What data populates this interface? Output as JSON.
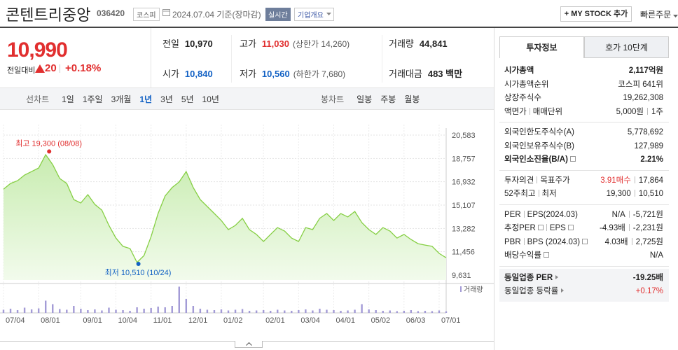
{
  "header": {
    "name": "콘텐트리중앙",
    "code": "036420",
    "market": "코스피",
    "date": "2024.07.04 기준(장마감)",
    "realtime": "실시간",
    "company": "기업개요",
    "mystock": "+ MY STOCK 추가",
    "quick_order": "빠른주문"
  },
  "quote": {
    "price": "10,990",
    "change_label": "전일대비",
    "change": "20",
    "change_pct": "+0.18%"
  },
  "stats": [
    [
      {
        "label": "전일",
        "value": "10,970"
      },
      {
        "label": "고가",
        "value": "11,030",
        "note": "(상한가 14,260)",
        "color": "#e12f2f"
      },
      {
        "label": "거래량",
        "value": "44,841"
      }
    ],
    [
      {
        "label": "시가",
        "value": "10,840",
        "color": "#1261c4"
      },
      {
        "label": "저가",
        "value": "10,560",
        "note": "(하한가 7,680)",
        "color": "#1261c4"
      },
      {
        "label": "거래대금",
        "value": "483 백만"
      }
    ]
  ],
  "periods": {
    "line_label": "선차트",
    "line": [
      "1일",
      "1주일",
      "3개월",
      "1년",
      "3년",
      "5년",
      "10년"
    ],
    "selected": 3,
    "candle_label": "봉차트",
    "candle": [
      "일봉",
      "주봉",
      "월봉"
    ]
  },
  "chart_data": {
    "type": "area",
    "series": [
      {
        "color": "#86cf44",
        "values": [
          16350,
          16800,
          17020,
          17460,
          17730,
          18010,
          19050,
          18280,
          17190,
          16800,
          15540,
          15270,
          15930,
          15160,
          14720,
          13520,
          12530,
          11880,
          11710,
          10620,
          11160,
          12640,
          14450,
          15820,
          16480,
          16920,
          17730,
          16480,
          15540,
          15000,
          14450,
          13900,
          13190,
          13520,
          14070,
          13190,
          12810,
          12260,
          12810,
          13350,
          13080,
          12530,
          12260,
          13350,
          13190,
          14070,
          14450,
          13900,
          14450,
          14180,
          14610,
          13740,
          13190,
          12810,
          13350,
          13080,
          12530,
          12810,
          12420,
          12090,
          11980,
          11880,
          11330,
          10990
        ]
      }
    ],
    "xlim": [
      0,
      63
    ],
    "xticks": [
      {
        "value": 0,
        "label": "07/04"
      },
      {
        "value": 5,
        "label": "08/01"
      },
      {
        "value": 11,
        "label": "09/01"
      },
      {
        "value": 16,
        "label": "10/04"
      },
      {
        "value": 21,
        "label": "11/01"
      },
      {
        "value": 26,
        "label": "12/01"
      },
      {
        "value": 31,
        "label": "01/02"
      },
      {
        "value": 37,
        "label": "02/01"
      },
      {
        "value": 42,
        "label": "03/04"
      },
      {
        "value": 47,
        "label": "04/01"
      },
      {
        "value": 52,
        "label": "05/02"
      },
      {
        "value": 57,
        "label": "06/03"
      },
      {
        "value": 62,
        "label": "07/01"
      }
    ],
    "ylim": [
      9631,
      20583
    ],
    "yticks": [
      {
        "value": 20583,
        "label": "20,583"
      },
      {
        "value": 18757,
        "label": "18,757"
      },
      {
        "value": 16932,
        "label": "16,932"
      },
      {
        "value": 15107,
        "label": "15,107"
      },
      {
        "value": 13282,
        "label": "13,282"
      },
      {
        "value": 11456,
        "label": "11,456"
      },
      {
        "value": 9631,
        "label": "9,631"
      }
    ],
    "grid": true,
    "annotations": [
      {
        "text": "최고 19,300 (08/08)",
        "x": 6.5,
        "value": 19300,
        "color": "#e12f2f",
        "position": "above"
      },
      {
        "text": "최저 10,510 (10/24)",
        "x": 19.2,
        "value": 10510,
        "color": "#1261c4",
        "position": "below"
      }
    ],
    "volume": {
      "label": "거래량",
      "color": "#a39bd6",
      "ylim": [
        0,
        800000
      ],
      "values": [
        90000,
        120000,
        80000,
        150000,
        100000,
        130000,
        350000,
        250000,
        110000,
        90000,
        200000,
        120000,
        80000,
        100000,
        70000,
        150000,
        90000,
        80000,
        60000,
        160000,
        120000,
        140000,
        180000,
        160000,
        200000,
        750000,
        400000,
        200000,
        120000,
        90000,
        80000,
        100000,
        70000,
        90000,
        110000,
        60000,
        70000,
        80000,
        60000,
        90000,
        70000,
        60000,
        80000,
        100000,
        70000,
        120000,
        90000,
        80000,
        60000,
        70000,
        90000,
        250000,
        100000,
        80000,
        60000,
        70000,
        50000,
        60000,
        80000,
        50000,
        60000,
        50000,
        70000,
        44841
      ]
    }
  },
  "info": {
    "tabs": [
      "투자정보",
      "호가 10단계"
    ],
    "groups": [
      [
        {
          "label": [
            "시가총액"
          ],
          "value": [
            "2,117억원"
          ],
          "bold": true
        },
        {
          "label": [
            "시가총액순위"
          ],
          "value": [
            "코스피 641위"
          ]
        },
        {
          "label": [
            "상장주식수"
          ],
          "value": [
            "19,262,308"
          ]
        },
        {
          "label": [
            "액면가",
            "매매단위"
          ],
          "value": [
            "5,000원",
            "1주"
          ]
        }
      ],
      [
        {
          "label": [
            "외국인한도주식수(A)"
          ],
          "value": [
            "5,778,692"
          ]
        },
        {
          "label": [
            "외국인보유주식수(B)"
          ],
          "value": [
            "127,989"
          ]
        },
        {
          "label": [
            "외국인소진율(B/A)"
          ],
          "value": [
            "2.21%"
          ],
          "bold": true,
          "help": true
        }
      ],
      [
        {
          "label": [
            "투자의견",
            "목표주가"
          ],
          "value": [
            "3.91매수",
            "17,864"
          ],
          "color": "#e12f2f"
        },
        {
          "label": [
            "52주최고",
            "최저"
          ],
          "value": [
            "19,300",
            "10,510"
          ]
        }
      ],
      [
        {
          "label": [
            "PER",
            "EPS(2024.03)"
          ],
          "value": [
            "N/A",
            "-5,721원"
          ]
        },
        {
          "label": [
            "추정PER",
            "EPS"
          ],
          "value": [
            "-4.93배",
            "-2,231원"
          ],
          "help": true
        },
        {
          "label": [
            "PBR",
            "BPS (2024.03)"
          ],
          "value": [
            "4.03배",
            "2,725원"
          ],
          "help": true
        },
        {
          "label": [
            "배당수익률"
          ],
          "value": [
            "N/A"
          ],
          "help": true
        }
      ],
      [
        {
          "label": [
            "동일업종 PER"
          ],
          "value": [
            "-19.25배"
          ],
          "bold": true,
          "arrow": true
        },
        {
          "label": [
            "동일업종 등락률"
          ],
          "value": [
            "+0.17%"
          ],
          "arrow": true,
          "color": "#e12f2f"
        }
      ]
    ]
  }
}
